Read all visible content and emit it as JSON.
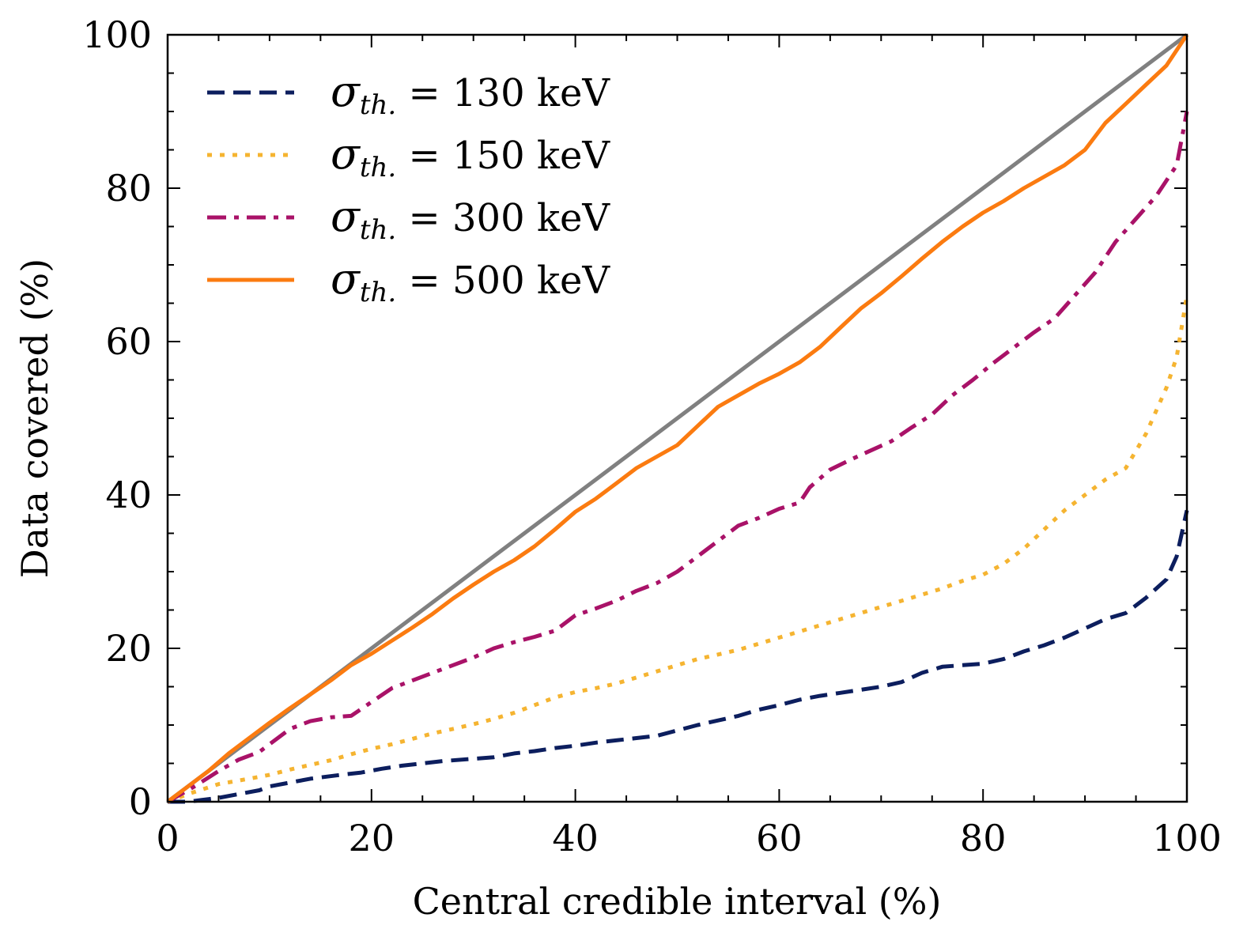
{
  "chart_data": {
    "type": "line",
    "title": "",
    "xlabel": "Central credible interval (%)",
    "ylabel": "Data covered (%)",
    "xlim": [
      0,
      100
    ],
    "ylim": [
      0,
      100
    ],
    "xticks": [
      "0",
      "20",
      "40",
      "60",
      "80",
      "100"
    ],
    "yticks": [
      "0",
      "20",
      "40",
      "60",
      "80",
      "100"
    ],
    "grid": false,
    "legend_position": "top-left",
    "reference_line": {
      "x": [
        0,
        100
      ],
      "y": [
        0,
        100
      ],
      "color": "#808080"
    },
    "series": [
      {
        "name": "σ_th. = 130 keV",
        "legend": {
          "symbol": "σ",
          "sub": "th.",
          "rest": " = 130 keV"
        },
        "color": "#0c1e5e",
        "style": "dashed",
        "x": [
          0,
          2,
          5,
          7,
          9,
          10,
          12,
          14,
          17,
          19,
          21,
          23,
          25,
          27,
          30,
          32,
          34,
          36,
          38,
          40,
          42,
          44,
          46,
          48,
          50,
          52,
          54,
          56,
          58,
          60,
          62,
          64,
          66,
          68,
          70,
          72,
          74,
          76,
          78,
          80,
          82,
          84,
          86,
          88,
          90,
          92,
          94,
          96,
          98,
          99,
          100
        ],
        "y": [
          0,
          0,
          0.5,
          1,
          1.5,
          2,
          2.5,
          3,
          3.5,
          3.8,
          4.3,
          4.7,
          5,
          5.3,
          5.6,
          5.8,
          6.3,
          6.6,
          7,
          7.3,
          7.7,
          8,
          8.3,
          8.6,
          9.3,
          10,
          10.6,
          11.2,
          12,
          12.6,
          13.3,
          13.8,
          14.2,
          14.6,
          15,
          15.6,
          16.8,
          17.6,
          17.8,
          18,
          18.6,
          19.6,
          20.4,
          21.4,
          22.6,
          23.8,
          24.6,
          26.6,
          29,
          32,
          38
        ]
      },
      {
        "name": "σ_th. = 150 keV",
        "legend": {
          "symbol": "σ",
          "sub": "th.",
          "rest": " = 150 keV"
        },
        "color": "#f5b431",
        "style": "dotted",
        "x": [
          0,
          2,
          5,
          8,
          10,
          12,
          14,
          16,
          18,
          20,
          22,
          24,
          26,
          28,
          30,
          32,
          34,
          36,
          38,
          40,
          42,
          44,
          46,
          48,
          50,
          52,
          54,
          56,
          58,
          60,
          62,
          64,
          66,
          68,
          70,
          72,
          74,
          76,
          78,
          80,
          82,
          84,
          86,
          88,
          90,
          92,
          94,
          96,
          98,
          99,
          100
        ],
        "y": [
          0,
          1,
          2.3,
          3,
          3.5,
          4.2,
          4.8,
          5.4,
          6.2,
          6.9,
          7.5,
          8.2,
          8.9,
          9.5,
          10.1,
          10.8,
          11.6,
          12.6,
          13.6,
          14.3,
          14.8,
          15.4,
          16.2,
          17,
          17.8,
          18.6,
          19.2,
          19.8,
          20.6,
          21.4,
          22.2,
          23,
          23.8,
          24.6,
          25.4,
          26.2,
          27,
          27.8,
          28.8,
          29.6,
          31,
          33,
          35.5,
          38,
          40,
          42,
          43.5,
          48,
          54,
          58,
          66
        ]
      },
      {
        "name": "σ_th. = 300 keV",
        "legend": {
          "symbol": "σ",
          "sub": "th.",
          "rest": " = 300 keV"
        },
        "color": "#a91268",
        "style": "dashdot",
        "x": [
          0,
          2,
          3,
          5,
          7,
          9,
          10,
          12,
          14,
          16,
          18,
          20,
          22,
          24,
          26,
          28,
          30,
          32,
          34,
          36,
          38,
          40,
          42,
          44,
          46,
          48,
          50,
          52,
          54,
          56,
          58,
          60,
          62,
          63,
          65,
          67,
          69,
          71,
          73,
          75,
          77,
          79,
          81,
          83,
          85,
          87,
          89,
          91,
          93,
          95,
          97,
          99,
          100
        ],
        "y": [
          0,
          1.5,
          2.3,
          4,
          5.5,
          6.5,
          7.5,
          9.5,
          10.5,
          11,
          11.2,
          13,
          14.8,
          15.8,
          16.8,
          17.8,
          18.8,
          20,
          20.8,
          21.5,
          22.3,
          24.3,
          25.2,
          26.2,
          27.5,
          28.5,
          30,
          32,
          34,
          36,
          37,
          38.2,
          39,
          41,
          43.3,
          44.6,
          45.8,
          47,
          48.8,
          50.5,
          53,
          55,
          57.2,
          59.2,
          61.2,
          63,
          66,
          69,
          73,
          76,
          79,
          83,
          90
        ]
      },
      {
        "name": "σ_th. = 500 keV",
        "legend": {
          "symbol": "σ",
          "sub": "th.",
          "rest": " = 500 keV"
        },
        "color": "#fb7b10",
        "style": "solid",
        "x": [
          0,
          2,
          4,
          6,
          8,
          10,
          12,
          14,
          16,
          18,
          20,
          22,
          24,
          26,
          28,
          30,
          32,
          34,
          36,
          38,
          40,
          42,
          44,
          46,
          48,
          50,
          52,
          54,
          56,
          58,
          60,
          62,
          64,
          66,
          68,
          70,
          72,
          74,
          76,
          78,
          80,
          82,
          84,
          86,
          88,
          90,
          92,
          94,
          96,
          98,
          100
        ],
        "y": [
          0,
          2,
          4,
          6.3,
          8.3,
          10.3,
          12.2,
          14,
          15.8,
          17.8,
          19.3,
          21,
          22.7,
          24.5,
          26.5,
          28.3,
          30,
          31.5,
          33.3,
          35.5,
          37.8,
          39.5,
          41.5,
          43.5,
          45,
          46.5,
          49,
          51.5,
          53,
          54.5,
          55.8,
          57.3,
          59.3,
          61.8,
          64.3,
          66.3,
          68.5,
          70.8,
          73,
          75,
          76.8,
          78.3,
          80,
          81.5,
          83,
          85,
          88.5,
          91,
          93.5,
          96,
          100
        ]
      }
    ]
  }
}
